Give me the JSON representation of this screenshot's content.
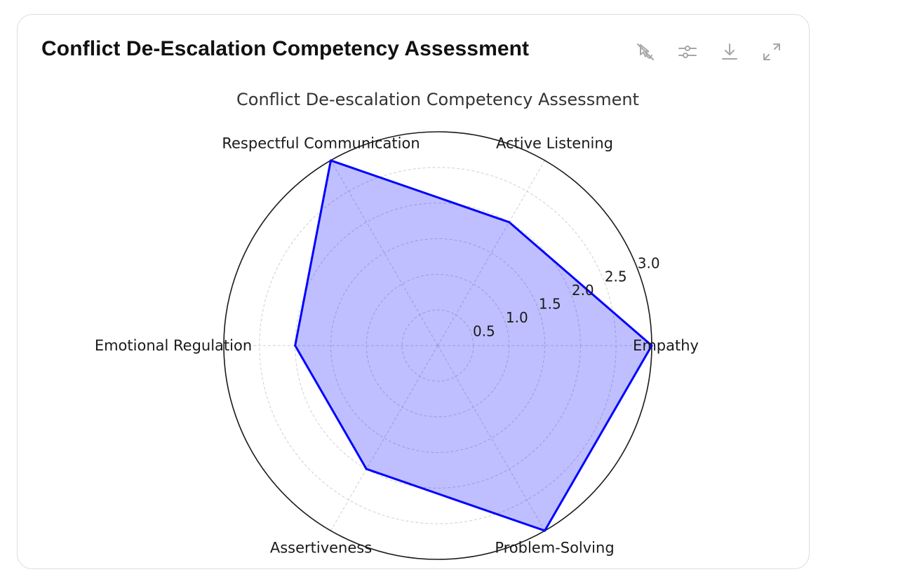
{
  "card": {
    "title": "Conflict De-Escalation Competency Assessment"
  },
  "toolbar": {
    "buttons": [
      {
        "name": "pan-off-button",
        "icon": "pan-off-icon"
      },
      {
        "name": "settings-button",
        "icon": "sliders-icon"
      },
      {
        "name": "download-button",
        "icon": "download-icon"
      },
      {
        "name": "fullscreen-button",
        "icon": "expand-icon"
      }
    ],
    "icon_color": "#a6a6a6"
  },
  "chart_data": {
    "type": "radar",
    "title": "Conflict De-escalation Competency Assessment",
    "categories": [
      "Empathy",
      "Active Listening",
      "Respectful Communication",
      "Emotional Regulation",
      "Assertiveness",
      "Problem-Solving"
    ],
    "series": [
      {
        "values": [
          3.0,
          2.0,
          3.0,
          2.0,
          2.0,
          3.0
        ],
        "line_color": "#0000ff",
        "fill_color": "#0000ff",
        "fill_opacity": 0.25
      }
    ],
    "rlim": [
      0,
      3.0
    ],
    "rticks": [
      0.5,
      1.0,
      1.5,
      2.0,
      2.5,
      3.0
    ],
    "rtick_labels": [
      "0.5",
      "1.0",
      "1.5",
      "2.0",
      "2.5",
      "3.0"
    ],
    "grid": true
  }
}
